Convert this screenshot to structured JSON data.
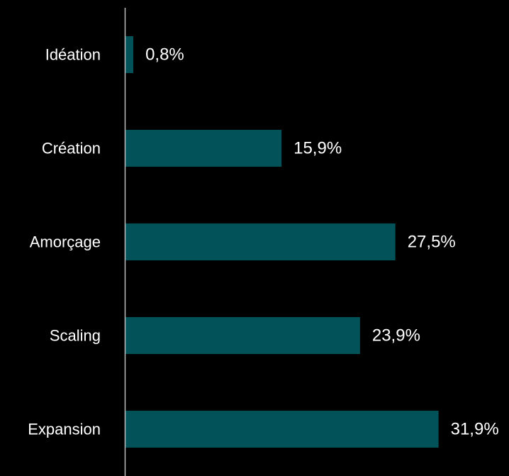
{
  "chart_data": {
    "type": "bar",
    "orientation": "horizontal",
    "categories": [
      "Idéation",
      "Création",
      "Amorçage",
      "Scaling",
      "Expansion"
    ],
    "values": [
      0.8,
      15.9,
      27.5,
      23.9,
      31.9
    ],
    "value_labels": [
      "0,8%",
      "15,9%",
      "27,5%",
      "23,9%",
      "31,9%"
    ],
    "unit": "%",
    "xlim": [
      0,
      32
    ],
    "grid": false,
    "legend": "none",
    "title": "",
    "xlabel": "",
    "ylabel": ""
  },
  "colors": {
    "background": "#000000",
    "bar": "#02525a",
    "text": "#ffffff",
    "axis": "#bfbfbf"
  }
}
